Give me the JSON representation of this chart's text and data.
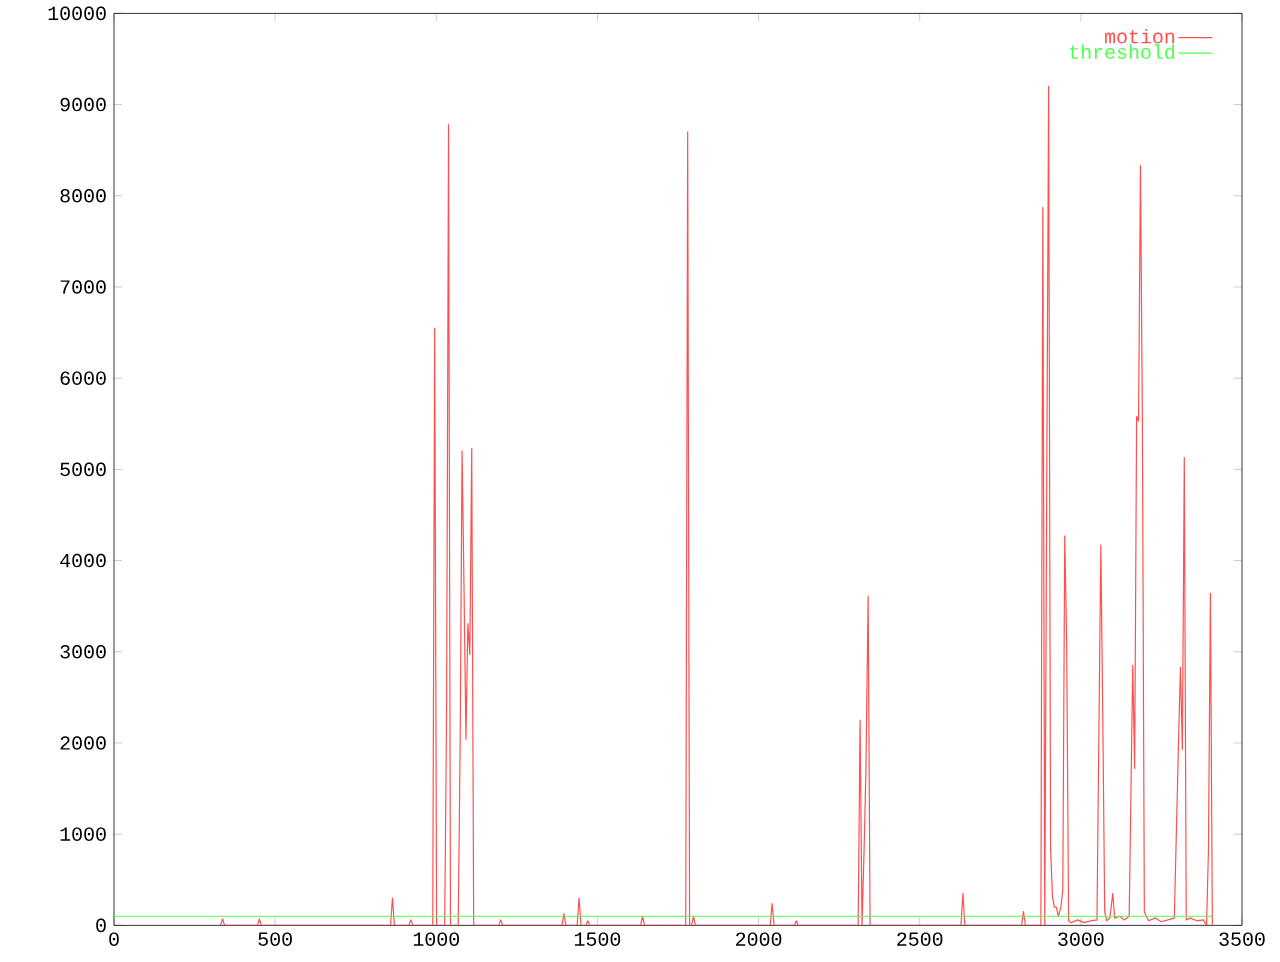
{
  "chart_data": {
    "type": "line",
    "xlim": [
      0,
      3500
    ],
    "ylim": [
      0,
      10000
    ],
    "xticks": [
      0,
      500,
      1000,
      1500,
      2000,
      2500,
      3000,
      3500
    ],
    "yticks": [
      0,
      1000,
      2000,
      3000,
      4000,
      5000,
      6000,
      7000,
      8000,
      9000,
      10000
    ],
    "grid": false,
    "legend": "top right",
    "series": [
      {
        "name": "motion",
        "color": "#ff5050",
        "x": [
          330,
          337,
          343,
          445,
          451,
          457,
          858,
          864,
          870,
          915,
          921,
          927,
          989,
          995,
          1001,
          1026,
          1032,
          1038,
          1044,
          1068,
          1074,
          1080,
          1086,
          1092,
          1098,
          1104,
          1110,
          1116,
          1194,
          1200,
          1206,
          1390,
          1396,
          1402,
          1437,
          1443,
          1449,
          1464,
          1470,
          1476,
          1634,
          1640,
          1646,
          1774,
          1780,
          1786,
          1792,
          1798,
          1804,
          2036,
          2042,
          2048,
          2111,
          2117,
          2123,
          2309,
          2315,
          2321,
          2327,
          2333,
          2340,
          2346,
          2628,
          2634,
          2640,
          2816,
          2822,
          2828,
          2876,
          2882,
          2888,
          2894,
          2900,
          2906,
          2912,
          2918,
          2924,
          2930,
          2938,
          2944,
          2950,
          2956,
          2962,
          2970,
          2990,
          3010,
          3030,
          3050,
          3062,
          3068,
          3074,
          3080,
          3090,
          3099,
          3105,
          3120,
          3135,
          3150,
          3161,
          3167,
          3173,
          3179,
          3185,
          3191,
          3197,
          3210,
          3230,
          3250,
          3270,
          3290,
          3303,
          3309,
          3315,
          3321,
          3327,
          3340,
          3360,
          3380,
          3390,
          3396,
          3402,
          3408
        ],
        "values": [
          0,
          70,
          0,
          0,
          70,
          0,
          0,
          300,
          0,
          0,
          60,
          0,
          0,
          6550,
          0,
          0,
          2370,
          8780,
          0,
          0,
          1980,
          5200,
          3710,
          2040,
          3310,
          2970,
          5230,
          0,
          0,
          60,
          0,
          0,
          130,
          0,
          0,
          300,
          0,
          0,
          50,
          0,
          0,
          100,
          0,
          0,
          8700,
          0,
          0,
          100,
          0,
          0,
          240,
          0,
          0,
          50,
          0,
          0,
          2250,
          0,
          770,
          1680,
          3610,
          0,
          0,
          350,
          0,
          0,
          150,
          0,
          0,
          7870,
          0,
          4710,
          9200,
          850,
          310,
          200,
          200,
          100,
          200,
          390,
          4270,
          3110,
          50,
          30,
          60,
          30,
          50,
          60,
          4170,
          2300,
          150,
          50,
          80,
          350,
          80,
          100,
          60,
          100,
          2850,
          1720,
          5580,
          5530,
          8330,
          5500,
          150,
          50,
          80,
          40,
          60,
          80,
          2000,
          2830,
          1930,
          5130,
          60,
          80,
          50,
          60,
          0,
          830,
          3640,
          0
        ]
      },
      {
        "name": "threshold",
        "color": "#50ff50",
        "x": [
          0,
          3408
        ],
        "values": [
          100,
          100
        ]
      }
    ]
  }
}
